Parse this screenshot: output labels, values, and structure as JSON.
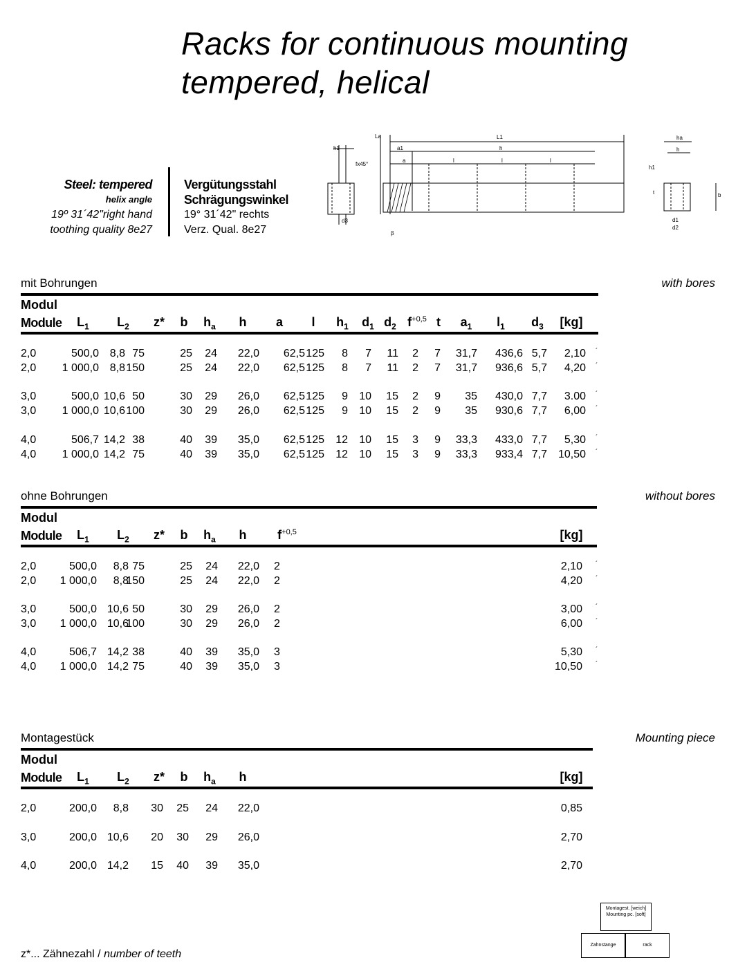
{
  "title": {
    "line1": "Racks for continuous mounting",
    "line2": "tempered, helical"
  },
  "material_en": {
    "name": "Steel: tempered",
    "helix_label": "helix angle",
    "helix_value": "19º 31´42\"right hand",
    "quality": "toothing quality 8e27"
  },
  "material_de": {
    "name": "Vergütungsstahl",
    "helix_label": "Schrägungswinkel",
    "helix_value": "19° 31´42\" rechts",
    "quality": "Verz. Qual. 8e27"
  },
  "drawing": {
    "labels": [
      "h1",
      "fx45°",
      "d3",
      "La",
      "L1",
      "a1",
      "h",
      "a",
      "l",
      "l",
      "l",
      "β",
      "ha",
      "h",
      "h1",
      "t",
      "b",
      "d1",
      "d2"
    ]
  },
  "headers": {
    "modul": "Modul",
    "module": "Module",
    "L1": "L",
    "L1_sub": "1",
    "L2": "L",
    "L2_sub": "2",
    "z": "z*",
    "b": "b",
    "ha": "h",
    "ha_sub": "a",
    "h": "h",
    "a": "a",
    "l": "l",
    "h1": "h",
    "h1_sub": "1",
    "d1": "d",
    "d1_sub": "1",
    "d2": "d",
    "d2_sub": "2",
    "f": "f",
    "f_sup": "+0,5",
    "t": "t",
    "a1": "a",
    "a1_sub": "1",
    "l1": "l",
    "l1_sub": "1",
    "d3": "d",
    "d3_sub": "3",
    "kg": "[kg]"
  },
  "with_bores": {
    "label_de": "mit Bohrungen",
    "label_en": "with bores",
    "rows": [
      [
        "2,0",
        "500,0",
        "8,8",
        "75",
        "25",
        "24",
        "22,0",
        "62,5",
        "125",
        "8",
        "7",
        "11",
        "2",
        "7",
        "31,7",
        "436,6",
        "5,7",
        "2,10"
      ],
      [
        "2,0",
        "1 000,0",
        "8,8",
        "150",
        "25",
        "24",
        "22,0",
        "62,5",
        "125",
        "8",
        "7",
        "11",
        "2",
        "7",
        "31,7",
        "936,6",
        "5,7",
        "4,20"
      ],
      [
        "3,0",
        "500,0",
        "10,6",
        "50",
        "30",
        "29",
        "26,0",
        "62,5",
        "125",
        "9",
        "10",
        "15",
        "2",
        "9",
        "35",
        "430,0",
        "7,7",
        "3.00"
      ],
      [
        "3,0",
        "1 000,0",
        "10,6",
        "100",
        "30",
        "29",
        "26,0",
        "62,5",
        "125",
        "9",
        "10",
        "15",
        "2",
        "9",
        "35",
        "930,6",
        "7,7",
        "6,00"
      ],
      [
        "4,0",
        "506,7",
        "14,2",
        "38",
        "40",
        "39",
        "35,0",
        "62,5",
        "125",
        "12",
        "10",
        "15",
        "3",
        "9",
        "33,3",
        "433,0",
        "7,7",
        "5,30"
      ],
      [
        "4,0",
        "1 000,0",
        "14,2",
        "75",
        "40",
        "39",
        "35,0",
        "62,5",
        "125",
        "12",
        "10",
        "15",
        "3",
        "9",
        "33,3",
        "933,4",
        "7,7",
        "10,50"
      ]
    ]
  },
  "without_bores": {
    "label_de": "ohne Bohrungen",
    "label_en": "without bores",
    "rows": [
      [
        "2,0",
        "500,0",
        "8,8",
        "75",
        "25",
        "24",
        "22,0",
        "2",
        "2,10"
      ],
      [
        "2,0",
        "1 000,0",
        "8,8",
        "150",
        "25",
        "24",
        "22,0",
        "2",
        "4,20"
      ],
      [
        "3,0",
        "500,0",
        "10,6",
        "50",
        "30",
        "29",
        "26,0",
        "2",
        "3,00"
      ],
      [
        "3,0",
        "1 000,0",
        "10,6",
        "100",
        "30",
        "29",
        "26,0",
        "2",
        "6,00"
      ],
      [
        "4,0",
        "506,7",
        "14,2",
        "38",
        "40",
        "39",
        "35,0",
        "3",
        "5,30"
      ],
      [
        "4,0",
        "1 000,0",
        "14,2",
        "75",
        "40",
        "39",
        "35,0",
        "3",
        "10,50"
      ]
    ]
  },
  "mounting_piece": {
    "label_de": "Montagestück",
    "label_en": "Mounting piece",
    "rows": [
      [
        "2,0",
        "200,0",
        "8,8",
        "30",
        "25",
        "24",
        "22,0",
        "0,85"
      ],
      [
        "3,0",
        "200,0",
        "10,6",
        "20",
        "30",
        "29",
        "26,0",
        "2,70"
      ],
      [
        "4,0",
        "200,0",
        "14,2",
        "15",
        "40",
        "39",
        "35,0",
        "2,70"
      ]
    ]
  },
  "mini_diagram": {
    "piece_de": "Montagest. [weich]",
    "piece_en": "Mounting pc. [soft]",
    "rack_de": "Zahnstange",
    "rack_en": "rack"
  },
  "footnote": {
    "prefix": "z*...  Zähnezahl  / ",
    "text_en": "number of teeth"
  }
}
